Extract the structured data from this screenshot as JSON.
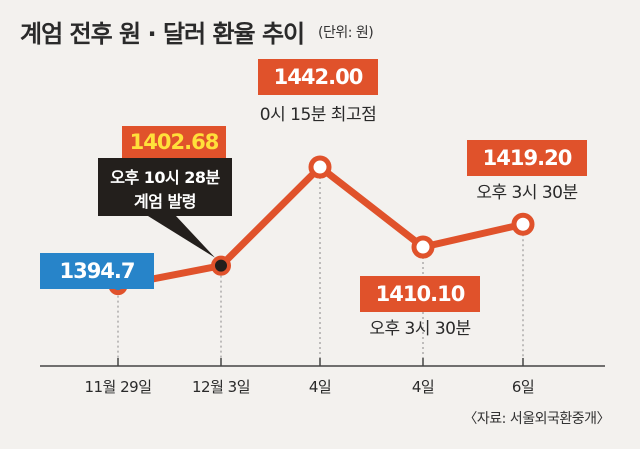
{
  "title": "계엄 전후 원 · 달러 환율 추이",
  "unit": "(단위: 원)",
  "source": "〈자료: 서울외국환중개〉",
  "colors": {
    "line": "#e0522b",
    "label_red": "#e0522b",
    "label_blue": "#2784c9",
    "annotation_bg": "#231f1c",
    "highlight_text": "#ffe03a",
    "background": "#f3f1ee",
    "axis": "#444444"
  },
  "chart_data": {
    "type": "line",
    "title": "계엄 전후 원 · 달러 환율 추이",
    "xlabel": "",
    "ylabel": "",
    "categories": [
      "11월 29일",
      "12월 3일",
      "4일",
      "4일",
      "6일"
    ],
    "values": [
      1394.7,
      1402.68,
      1442.0,
      1410.1,
      1419.2
    ],
    "value_labels": [
      "1394.7",
      "1402.68",
      "1442.00",
      "1410.10",
      "1419.20"
    ],
    "ylim": [
      1385,
      1450
    ],
    "grid": false,
    "annotations": [
      {
        "point": 1,
        "text_lines": [
          "오후 10시 28분",
          "계엄 발령"
        ]
      },
      {
        "point": 2,
        "text_lines": [
          "0시 15분 최고점"
        ]
      },
      {
        "point": 3,
        "text_lines": [
          "오후 3시 30분"
        ]
      },
      {
        "point": 4,
        "text_lines": [
          "오후 3시 30분"
        ]
      }
    ]
  }
}
